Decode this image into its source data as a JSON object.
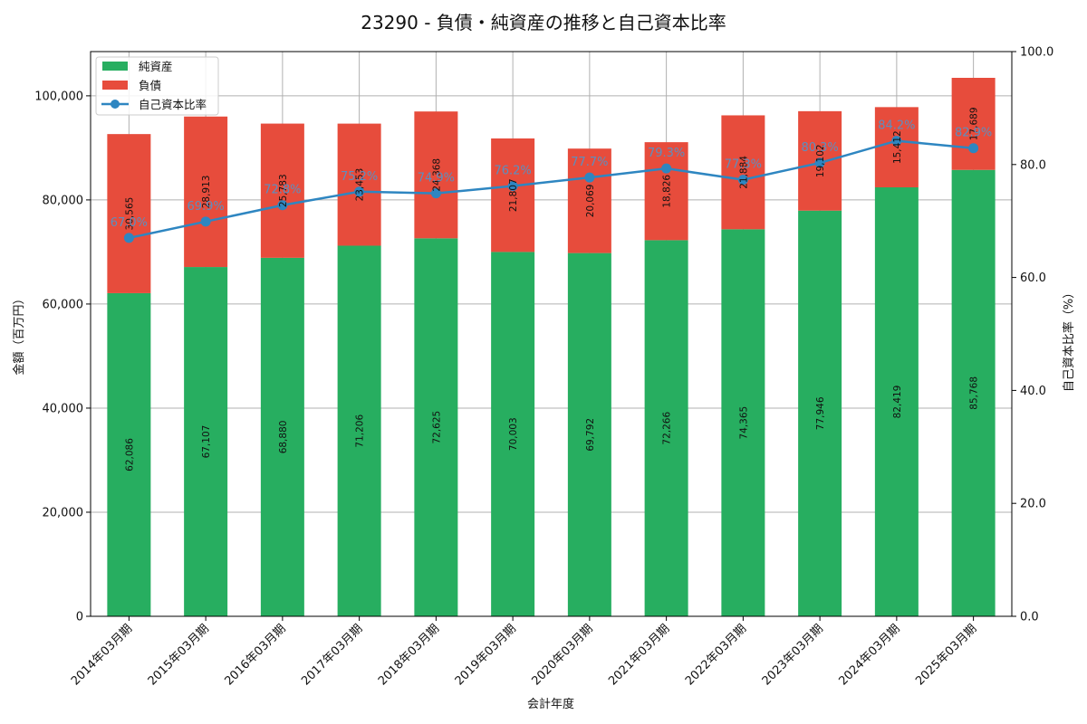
{
  "chart_data": {
    "type": "bar",
    "stacked": true,
    "title": "23290 - 負債・純資産の推移と自己資本比率",
    "xlabel": "会計年度",
    "ylabel": "金額（百万円）",
    "y2label": "自己資本比率（%）",
    "ylim": [
      0,
      108500
    ],
    "y2lim": [
      0,
      100
    ],
    "yticks": [
      0,
      20000,
      40000,
      60000,
      80000,
      100000
    ],
    "ytick_labels": [
      "0",
      "20,000",
      "40,000",
      "60,000",
      "80,000",
      "100,000"
    ],
    "y2ticks": [
      0,
      20,
      40,
      60,
      80,
      100
    ],
    "y2tick_labels": [
      "0.0",
      "20.0",
      "40.0",
      "60.0",
      "80.0",
      "100.0"
    ],
    "categories": [
      "2014年03月期",
      "2015年03月期",
      "2016年03月期",
      "2017年03月期",
      "2018年03月期",
      "2019年03月期",
      "2020年03月期",
      "2021年03月期",
      "2022年03月期",
      "2023年03月期",
      "2024年03月期",
      "2025年03月期"
    ],
    "series": [
      {
        "name": "純資産",
        "color": "#27ae60",
        "values": [
          62086,
          67107,
          68880,
          71206,
          72625,
          70003,
          69792,
          72266,
          74365,
          77946,
          82419,
          85768
        ],
        "labels": [
          "62,086",
          "67,107",
          "68,880",
          "71,206",
          "72,625",
          "70,003",
          "69,792",
          "72,266",
          "74,365",
          "77,946",
          "82,419",
          "85,768"
        ]
      },
      {
        "name": "負債",
        "color": "#e74c3c",
        "values": [
          30565,
          28913,
          25783,
          23453,
          24368,
          21807,
          20069,
          18826,
          21884,
          19102,
          15412,
          17689
        ],
        "labels": [
          "30,565",
          "28,913",
          "25,783",
          "23,453",
          "24,368",
          "21,807",
          "20,069",
          "18,826",
          "21,884",
          "19,102",
          "15,412",
          "17,689"
        ]
      }
    ],
    "line": {
      "name": "自己資本比率",
      "color": "#2e86c1",
      "values": [
        67.0,
        69.9,
        72.8,
        75.2,
        74.9,
        76.2,
        77.7,
        79.3,
        77.3,
        80.3,
        84.2,
        82.9
      ],
      "labels": [
        "67.0%",
        "69.9%",
        "72.8%",
        "75.2%",
        "74.9%",
        "76.2%",
        "77.7%",
        "79.3%",
        "77.3%",
        "80.3%",
        "84.2%",
        "82.9%"
      ]
    },
    "legend_position": "top-left",
    "grid": true
  }
}
